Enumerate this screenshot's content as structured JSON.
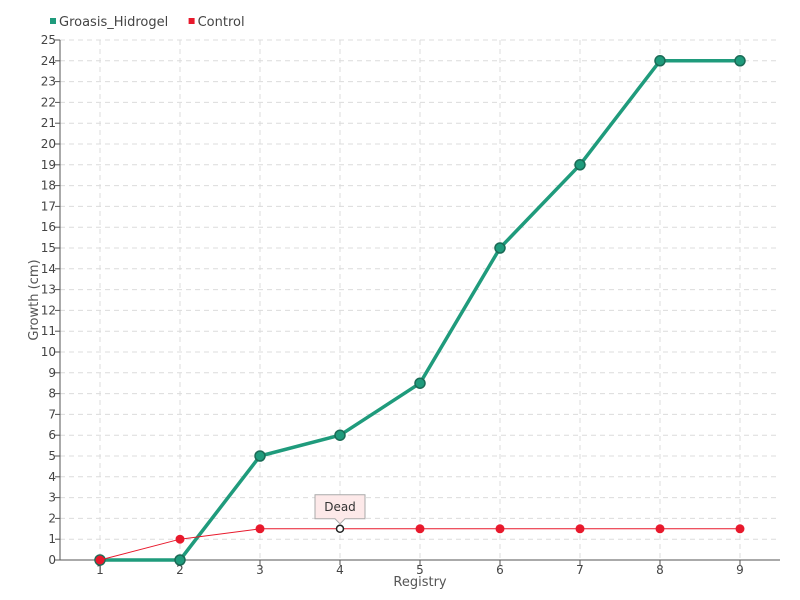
{
  "chart_data": {
    "type": "line",
    "title": "",
    "xlabel": "Registry",
    "ylabel": "Growth (cm)",
    "x": [
      1,
      2,
      3,
      4,
      5,
      6,
      7,
      8,
      9
    ],
    "xlim": [
      0.5,
      9.5
    ],
    "ylim": [
      0,
      25
    ],
    "y_ticks": [
      0,
      1,
      2,
      3,
      4,
      5,
      6,
      7,
      8,
      9,
      10,
      11,
      12,
      13,
      14,
      15,
      16,
      17,
      18,
      19,
      20,
      21,
      22,
      23,
      24,
      25
    ],
    "grid": true,
    "legend_position": "top-left",
    "series": [
      {
        "name": "Groasis_Hidrogel",
        "color": "#1f9b7c",
        "values": [
          0,
          0,
          5,
          6,
          8.5,
          15,
          19,
          24,
          24
        ]
      },
      {
        "name": "Control",
        "color": "#e8192c",
        "values": [
          0,
          1,
          1.5,
          1.5,
          1.5,
          1.5,
          1.5,
          1.5,
          1.5
        ]
      }
    ],
    "annotations": [
      {
        "series": "Control",
        "x": 4,
        "y": 1.5,
        "text": "Dead"
      }
    ]
  }
}
